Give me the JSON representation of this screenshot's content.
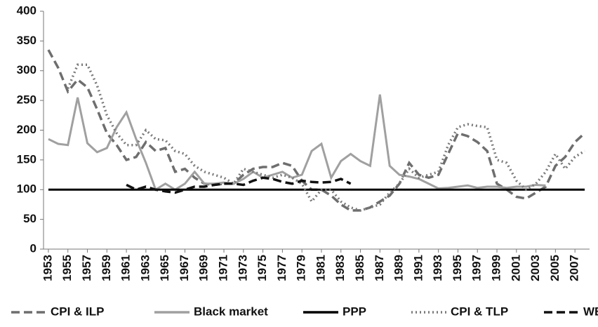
{
  "chart_data": {
    "type": "line",
    "x": [
      1953,
      1954,
      1955,
      1956,
      1957,
      1958,
      1959,
      1960,
      1961,
      1962,
      1963,
      1964,
      1965,
      1966,
      1967,
      1968,
      1969,
      1970,
      1971,
      1972,
      1973,
      1974,
      1975,
      1976,
      1977,
      1978,
      1979,
      1980,
      1981,
      1982,
      1983,
      1984,
      1985,
      1986,
      1987,
      1988,
      1989,
      1990,
      1991,
      1992,
      1993,
      1994,
      1995,
      1996,
      1997,
      1998,
      1999,
      2000,
      2001,
      2002,
      2003,
      2004,
      2005,
      2006,
      2007,
      2008
    ],
    "xlim": [
      1952.5,
      2008.5
    ],
    "xticks": [
      1953,
      1955,
      1957,
      1959,
      1961,
      1963,
      1965,
      1967,
      1969,
      1971,
      1973,
      1975,
      1977,
      1979,
      1981,
      1983,
      1985,
      1987,
      1989,
      1991,
      1993,
      1995,
      1997,
      1999,
      2001,
      2003,
      2005,
      2007
    ],
    "ylim": [
      0,
      400
    ],
    "yticks": [
      0,
      50,
      100,
      150,
      200,
      250,
      300,
      350,
      400
    ],
    "series": [
      {
        "name": "CPI & ILP",
        "color": "#6e6e6e",
        "style": "dashed",
        "values": [
          335,
          305,
          265,
          285,
          272,
          235,
          195,
          175,
          150,
          155,
          180,
          165,
          170,
          130,
          135,
          120,
          110,
          108,
          110,
          110,
          125,
          135,
          138,
          138,
          145,
          140,
          115,
          100,
          100,
          90,
          75,
          65,
          65,
          70,
          80,
          90,
          110,
          145,
          125,
          120,
          125,
          160,
          195,
          190,
          180,
          165,
          110,
          100,
          88,
          85,
          95,
          105,
          140,
          155,
          180,
          195
        ]
      },
      {
        "name": "Black market",
        "color": "#a0a0a0",
        "style": "solid",
        "values": [
          185,
          177,
          175,
          255,
          178,
          163,
          170,
          205,
          230,
          185,
          145,
          100,
          110,
          100,
          110,
          130,
          110,
          110,
          112,
          110,
          118,
          130,
          120,
          125,
          130,
          120,
          125,
          165,
          177,
          120,
          148,
          160,
          148,
          140,
          260,
          140,
          125,
          122,
          118,
          110,
          102,
          103,
          105,
          107,
          103,
          105,
          105,
          103,
          105,
          105,
          108,
          107,
          null,
          null,
          null,
          null
        ]
      },
      {
        "name": "PPP",
        "color": "#000000",
        "style": "solid",
        "values": [
          100,
          100,
          100,
          100,
          100,
          100,
          100,
          100,
          100,
          100,
          100,
          100,
          100,
          100,
          100,
          100,
          100,
          100,
          100,
          100,
          100,
          100,
          100,
          100,
          100,
          100,
          100,
          100,
          100,
          100,
          100,
          100,
          100,
          100,
          100,
          100,
          100,
          100,
          100,
          100,
          100,
          100,
          100,
          100,
          100,
          100,
          100,
          100,
          100,
          100,
          100,
          100,
          100,
          100,
          100,
          100
        ]
      },
      {
        "name": "CPI & TLP",
        "color": "#7a7a7a",
        "style": "dotted",
        "values": [
          null,
          null,
          270,
          310,
          310,
          275,
          225,
          195,
          175,
          175,
          200,
          185,
          183,
          165,
          160,
          140,
          130,
          125,
          120,
          110,
          135,
          130,
          125,
          120,
          125,
          120,
          110,
          80,
          100,
          100,
          80,
          70,
          65,
          70,
          75,
          95,
          110,
          135,
          120,
          125,
          130,
          175,
          205,
          210,
          207,
          205,
          150,
          145,
          115,
          100,
          110,
          130,
          160,
          135,
          155,
          165
        ]
      },
      {
        "name": "WB",
        "color": "#111111",
        "style": "dashed",
        "values": [
          null,
          null,
          null,
          null,
          null,
          null,
          null,
          null,
          108,
          100,
          105,
          100,
          97,
          95,
          100,
          105,
          105,
          108,
          110,
          110,
          108,
          115,
          120,
          118,
          113,
          110,
          115,
          113,
          112,
          113,
          118,
          110,
          null,
          null,
          null,
          null,
          null,
          null,
          null,
          null,
          null,
          null,
          null,
          null,
          null,
          null,
          null,
          null,
          null,
          null,
          null,
          null,
          null,
          null,
          null,
          null
        ]
      }
    ]
  }
}
